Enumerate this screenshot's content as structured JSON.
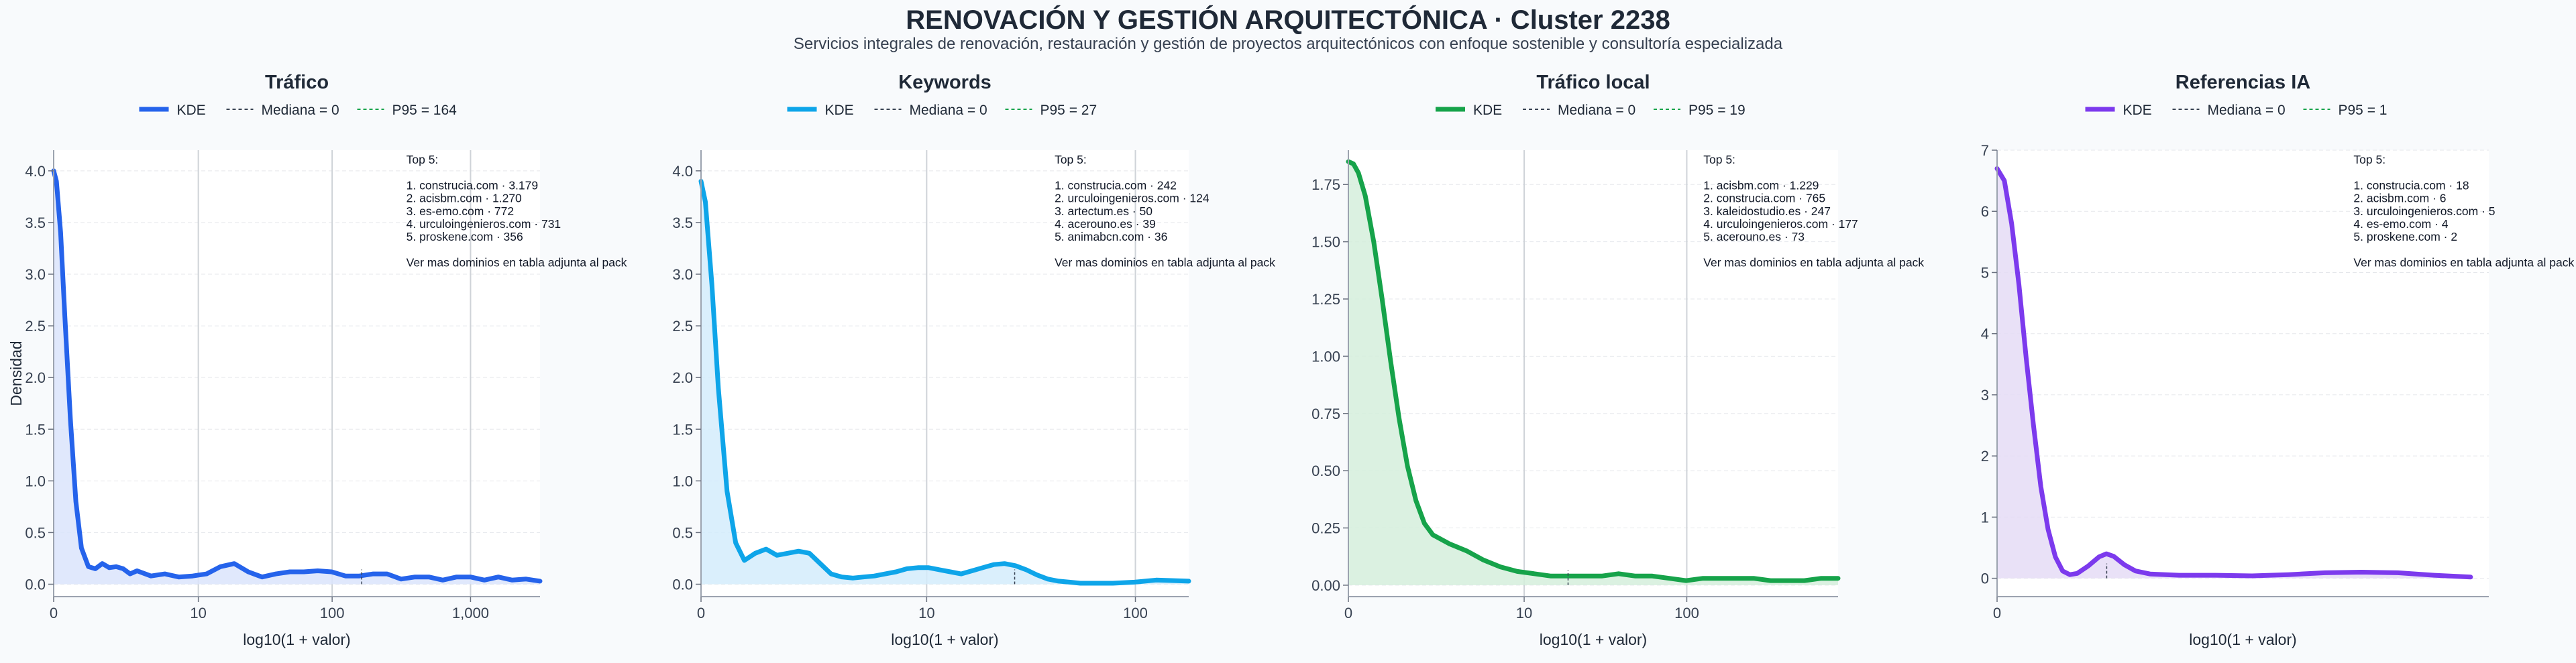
{
  "page": {
    "title": "RENOVACIÓN Y GESTIÓN ARQUITECTÓNICA · Cluster 2238",
    "subtitle": "Servicios integrales de renovación, restauración y gestión de proyectos arquitectónicos con enfoque sostenible y consultoría especializada"
  },
  "chart_data": [
    {
      "type": "area",
      "title": "Tráfico",
      "xlabel": "log10(1 + valor)",
      "ylabel": "Densidad",
      "color": "#2563eb",
      "fill": "#dbe4fb",
      "xlim": [
        0,
        3.5
      ],
      "ylim": [
        -0.12,
        4.2
      ],
      "yticks": [
        0.0,
        0.5,
        1.0,
        1.5,
        2.0,
        2.5,
        3.0,
        3.5,
        4.0
      ],
      "ytick_labels": [
        "0.0",
        "0.5",
        "1.0",
        "1.5",
        "2.0",
        "2.5",
        "3.0",
        "3.5",
        "4.0"
      ],
      "xticks": [
        0,
        1.041,
        2.004,
        3.0
      ],
      "xtick_labels": [
        "0",
        "10",
        "100",
        "1,000"
      ],
      "legend": [
        "KDE",
        "Mediana = 0",
        "P95 = 164"
      ],
      "median": 0,
      "p95_log": 2.217,
      "x": [
        0,
        0.02,
        0.05,
        0.08,
        0.12,
        0.16,
        0.2,
        0.25,
        0.3,
        0.35,
        0.4,
        0.45,
        0.5,
        0.55,
        0.6,
        0.7,
        0.8,
        0.9,
        1.0,
        1.1,
        1.2,
        1.3,
        1.4,
        1.5,
        1.6,
        1.7,
        1.8,
        1.9,
        2.0,
        2.1,
        2.2,
        2.3,
        2.4,
        2.5,
        2.6,
        2.7,
        2.8,
        2.9,
        3.0,
        3.1,
        3.2,
        3.3,
        3.4,
        3.5
      ],
      "y": [
        4.0,
        3.9,
        3.4,
        2.6,
        1.6,
        0.8,
        0.35,
        0.17,
        0.15,
        0.2,
        0.16,
        0.17,
        0.15,
        0.1,
        0.13,
        0.08,
        0.1,
        0.07,
        0.08,
        0.1,
        0.17,
        0.2,
        0.12,
        0.07,
        0.1,
        0.12,
        0.12,
        0.13,
        0.12,
        0.08,
        0.08,
        0.1,
        0.1,
        0.05,
        0.07,
        0.07,
        0.04,
        0.07,
        0.07,
        0.04,
        0.07,
        0.04,
        0.05,
        0.03
      ],
      "annotation": [
        "Top 5:",
        "",
        "1. construcia.com · 3.179",
        "2. acisbm.com · 1.270",
        "3. es-emo.com · 772",
        "4. urculoingenieros.com · 731",
        "5. proskene.com · 356",
        "",
        "Ver mas dominios en tabla adjunta al pack"
      ]
    },
    {
      "type": "area",
      "title": "Keywords",
      "xlabel": "log10(1 + valor)",
      "ylabel": "",
      "color": "#0ea5e9",
      "fill": "#d4ecfb",
      "xlim": [
        0,
        2.25
      ],
      "ylim": [
        -0.12,
        4.2
      ],
      "yticks": [
        0.0,
        0.5,
        1.0,
        1.5,
        2.0,
        2.5,
        3.0,
        3.5,
        4.0
      ],
      "ytick_labels": [
        "0.0",
        "0.5",
        "1.0",
        "1.5",
        "2.0",
        "2.5",
        "3.0",
        "3.5",
        "4.0"
      ],
      "xticks": [
        0,
        1.041,
        2.004
      ],
      "xtick_labels": [
        "0",
        "10",
        "100"
      ],
      "legend": [
        "KDE",
        "Mediana = 0",
        "P95 = 27"
      ],
      "median": 0,
      "p95_log": 1.447,
      "x": [
        0,
        0.02,
        0.05,
        0.08,
        0.12,
        0.16,
        0.2,
        0.25,
        0.3,
        0.35,
        0.4,
        0.45,
        0.5,
        0.55,
        0.6,
        0.65,
        0.7,
        0.75,
        0.8,
        0.85,
        0.9,
        0.95,
        1.0,
        1.05,
        1.1,
        1.15,
        1.2,
        1.25,
        1.3,
        1.35,
        1.4,
        1.45,
        1.5,
        1.55,
        1.6,
        1.65,
        1.7,
        1.75,
        1.8,
        1.9,
        2.0,
        2.1,
        2.25
      ],
      "y": [
        3.9,
        3.7,
        2.9,
        1.9,
        0.9,
        0.4,
        0.23,
        0.3,
        0.34,
        0.28,
        0.3,
        0.32,
        0.3,
        0.2,
        0.1,
        0.07,
        0.06,
        0.07,
        0.08,
        0.1,
        0.12,
        0.15,
        0.16,
        0.16,
        0.14,
        0.12,
        0.1,
        0.13,
        0.16,
        0.19,
        0.2,
        0.18,
        0.14,
        0.09,
        0.05,
        0.03,
        0.02,
        0.01,
        0.01,
        0.01,
        0.02,
        0.04,
        0.03
      ],
      "annotation": [
        "Top 5:",
        "",
        "1. construcia.com · 242",
        "2. urculoingenieros.com · 124",
        "3. artectum.es · 50",
        "4. acerouno.es · 39",
        "5. animabcn.com · 36",
        "",
        "Ver mas dominios en tabla adjunta al pack"
      ]
    },
    {
      "type": "area",
      "title": "Tráfico local",
      "xlabel": "log10(1 + valor)",
      "ylabel": "",
      "color": "#16a34a",
      "fill": "#d5eedc",
      "xlim": [
        0,
        2.9
      ],
      "ylim": [
        -0.05,
        1.9
      ],
      "yticks": [
        0.0,
        0.25,
        0.5,
        0.75,
        1.0,
        1.25,
        1.5,
        1.75
      ],
      "ytick_labels": [
        "0.00",
        "0.25",
        "0.50",
        "0.75",
        "1.00",
        "1.25",
        "1.50",
        "1.75"
      ],
      "xticks": [
        0,
        1.041,
        2.004
      ],
      "xtick_labels": [
        "0",
        "10",
        "100"
      ],
      "legend": [
        "KDE",
        "Mediana = 0",
        "P95 = 19"
      ],
      "median": 0,
      "p95_log": 1.301,
      "x": [
        0,
        0.03,
        0.06,
        0.1,
        0.15,
        0.2,
        0.25,
        0.3,
        0.35,
        0.4,
        0.45,
        0.5,
        0.55,
        0.6,
        0.7,
        0.8,
        0.9,
        1.0,
        1.1,
        1.2,
        1.3,
        1.4,
        1.5,
        1.6,
        1.7,
        1.8,
        1.9,
        2.0,
        2.1,
        2.2,
        2.3,
        2.4,
        2.5,
        2.6,
        2.7,
        2.8,
        2.9
      ],
      "y": [
        1.85,
        1.84,
        1.8,
        1.7,
        1.5,
        1.25,
        0.98,
        0.73,
        0.52,
        0.37,
        0.27,
        0.22,
        0.2,
        0.18,
        0.15,
        0.11,
        0.08,
        0.06,
        0.05,
        0.04,
        0.04,
        0.04,
        0.04,
        0.05,
        0.04,
        0.04,
        0.03,
        0.02,
        0.03,
        0.03,
        0.03,
        0.03,
        0.02,
        0.02,
        0.02,
        0.03,
        0.03
      ],
      "annotation": [
        "Top 5:",
        "",
        "1. acisbm.com · 1.229",
        "2. construcia.com · 765",
        "3. kaleidostudio.es · 247",
        "4. urculoingenieros.com · 177",
        "5. acerouno.es · 73",
        "",
        "Ver mas dominios en tabla adjunta al pack"
      ]
    },
    {
      "type": "area",
      "title": "Referencias IA",
      "xlabel": "log10(1 + valor)",
      "ylabel": "",
      "color": "#7c3aed",
      "fill": "#e5dcf6",
      "xlim": [
        0,
        1.35
      ],
      "ylim": [
        -0.3,
        7.0
      ],
      "yticks": [
        0,
        1,
        2,
        3,
        4,
        5,
        6,
        7
      ],
      "ytick_labels": [
        "0",
        "1",
        "2",
        "3",
        "4",
        "5",
        "6",
        "7"
      ],
      "xticks": [
        0
      ],
      "xtick_labels": [
        "0"
      ],
      "legend": [
        "KDE",
        "Mediana = 0",
        "P95 = 1"
      ],
      "median": 0,
      "p95_log": 0.301,
      "x": [
        0,
        0.02,
        0.04,
        0.06,
        0.08,
        0.1,
        0.12,
        0.14,
        0.16,
        0.18,
        0.2,
        0.22,
        0.25,
        0.28,
        0.3,
        0.32,
        0.35,
        0.38,
        0.42,
        0.5,
        0.6,
        0.7,
        0.8,
        0.9,
        1.0,
        1.1,
        1.2,
        1.3
      ],
      "y": [
        6.7,
        6.5,
        5.8,
        4.8,
        3.6,
        2.5,
        1.5,
        0.8,
        0.35,
        0.12,
        0.06,
        0.08,
        0.2,
        0.35,
        0.4,
        0.36,
        0.22,
        0.12,
        0.07,
        0.05,
        0.05,
        0.04,
        0.06,
        0.09,
        0.1,
        0.09,
        0.05,
        0.02
      ],
      "annotation": [
        "Top 5:",
        "",
        "1. construcia.com · 18",
        "2. acisbm.com · 6",
        "3. urculoingenieros.com · 5",
        "4. es-emo.com · 4",
        "5. proskene.com · 2",
        "",
        "Ver mas dominios en tabla adjunta al pack"
      ]
    }
  ]
}
